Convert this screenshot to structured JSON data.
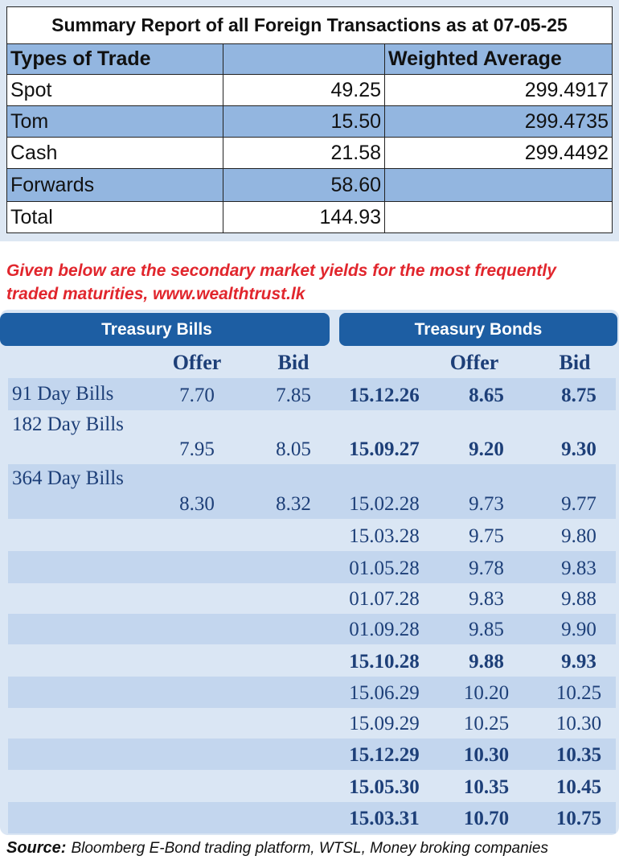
{
  "summary": {
    "title": "Summary Report of all Foreign Transactions as at 07-05-25",
    "headers": [
      "Types of Trade",
      "Weighted Average"
    ],
    "rows": [
      [
        "Spot",
        "49.25",
        "299.4917"
      ],
      [
        "Tom",
        "15.50",
        "299.4735"
      ],
      [
        "Cash",
        "21.58",
        "299.4492"
      ],
      [
        "Forwards",
        "58.60"
      ],
      [
        "Total",
        "144.93"
      ]
    ]
  },
  "note": "Given below are the secondary market yields for the most frequently traded maturities, www.wealthtrust.lk",
  "yields": {
    "bills_header": "Treasury Bills",
    "bonds_header": "Treasury Bonds",
    "bill_columns": [
      "Offer",
      "Bid"
    ],
    "bond_columns": [
      "Offer",
      "Bid"
    ],
    "bills": [
      [
        "91 Day Bills",
        "7.70",
        "7.85"
      ],
      [
        "182 Day Bills",
        "7.95",
        "8.05"
      ],
      [
        "364 Day Bills",
        "8.30",
        "8.32"
      ]
    ],
    "bonds": [
      [
        "15.12.26",
        "8.65",
        "8.75"
      ],
      [
        "15.09.27",
        "9.20",
        "9.30"
      ],
      [
        "15.02.28",
        "9.73",
        "9.77"
      ],
      [
        "15.03.28",
        "9.75",
        "9.80"
      ],
      [
        "01.05.28",
        "9.78",
        "9.83"
      ],
      [
        "01.07.28",
        "9.83",
        "9.88"
      ],
      [
        "01.09.28",
        "9.85",
        "9.90"
      ],
      [
        "15.10.28",
        "9.88",
        "9.93"
      ],
      [
        "15.06.29",
        "10.20",
        "10.25"
      ],
      [
        "15.09.29",
        "10.25",
        "10.30"
      ],
      [
        "15.12.29",
        "10.30",
        "10.35"
      ],
      [
        "15.05.30",
        "10.35",
        "10.45"
      ],
      [
        "15.03.31",
        "10.70",
        "10.75"
      ]
    ]
  },
  "source": {
    "label": "Source:",
    "text": "Bloomberg E-Bond trading platform, WTSL, Money broking companies"
  }
}
